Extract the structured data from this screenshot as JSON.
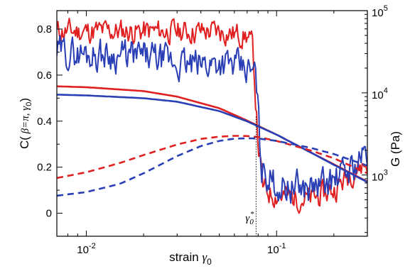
{
  "chart_data": {
    "type": "line",
    "xscale": "log",
    "xlim": [
      0.007,
      0.3
    ],
    "xticks": [
      0.01,
      0.1
    ],
    "xtick_labels": [
      {
        "base": "10",
        "exp": "-2"
      },
      {
        "base": "10",
        "exp": "-1"
      }
    ],
    "xlabel": {
      "text": "strain ",
      "symbol": "γ",
      "sub": "0"
    },
    "left_axis": {
      "label": {
        "pre": "C(",
        "mid": " β=π, γ",
        "sub": "0",
        "post": ")"
      },
      "lim": [
        -0.1,
        0.88
      ],
      "ticks": [
        0,
        0.2,
        0.4,
        0.6,
        0.8
      ],
      "tick_labels": [
        "0",
        "0.2",
        "0.4",
        "0.6",
        "0.8"
      ]
    },
    "right_axis": {
      "label": "G (Pa)",
      "scale": "log",
      "lim": [
        180,
        100000
      ],
      "ticks": [
        1000,
        10000,
        100000
      ],
      "tick_labels": [
        {
          "base": "10",
          "exp": "3"
        },
        {
          "base": "10",
          "exp": "4"
        },
        {
          "base": "10",
          "exp": "5"
        }
      ]
    },
    "annotation": {
      "symbol": "γ",
      "sub": "0",
      "sup": "*",
      "x": 0.078
    },
    "grid": false,
    "series": [
      {
        "axis": "left",
        "color": "#e02020",
        "style": "noisy-solid",
        "noise": 0.045,
        "seed": 11,
        "x": [
          0.007,
          0.02,
          0.05,
          0.07,
          0.075,
          0.08,
          0.085,
          0.1,
          0.15,
          0.2,
          0.25,
          0.3
        ],
        "y": [
          0.79,
          0.79,
          0.79,
          0.77,
          0.72,
          0.3,
          0.1,
          0.08,
          0.06,
          0.1,
          0.18,
          0.22
        ]
      },
      {
        "axis": "left",
        "color": "#2a3fb5",
        "style": "noisy-solid",
        "noise": 0.06,
        "seed": 29,
        "x": [
          0.007,
          0.02,
          0.035,
          0.05,
          0.07,
          0.078,
          0.083,
          0.1,
          0.15,
          0.2,
          0.25,
          0.3
        ],
        "y": [
          0.7,
          0.68,
          0.64,
          0.66,
          0.62,
          0.6,
          0.2,
          0.12,
          0.11,
          0.14,
          0.2,
          0.26
        ]
      },
      {
        "axis": "right",
        "color": "#e02020",
        "style": "solid",
        "x": [
          0.007,
          0.01,
          0.02,
          0.03,
          0.05,
          0.07,
          0.1,
          0.15,
          0.2,
          0.3
        ],
        "y": [
          12000,
          11700,
          10500,
          9000,
          6500,
          4600,
          3100,
          1900,
          1350,
          830
        ]
      },
      {
        "axis": "right",
        "color": "#2a3fb5",
        "style": "solid",
        "x": [
          0.007,
          0.01,
          0.02,
          0.03,
          0.05,
          0.07,
          0.1,
          0.15,
          0.2,
          0.3
        ],
        "y": [
          9500,
          9300,
          8600,
          7800,
          6000,
          4500,
          3100,
          1900,
          1330,
          820
        ]
      },
      {
        "axis": "right",
        "color": "#e02020",
        "style": "dashed",
        "x": [
          0.007,
          0.01,
          0.015,
          0.02,
          0.03,
          0.04,
          0.05,
          0.06,
          0.07,
          0.08,
          0.1,
          0.15,
          0.2,
          0.3
        ],
        "y": [
          920,
          1080,
          1400,
          1750,
          2350,
          2750,
          2930,
          3000,
          2980,
          2900,
          2600,
          2000,
          1600,
          1050
        ]
      },
      {
        "axis": "right",
        "color": "#2a3fb5",
        "style": "dashed",
        "x": [
          0.007,
          0.01,
          0.015,
          0.02,
          0.03,
          0.04,
          0.05,
          0.06,
          0.07,
          0.08,
          0.1,
          0.15,
          0.2,
          0.3
        ],
        "y": [
          560,
          620,
          780,
          1050,
          1700,
          2250,
          2600,
          2770,
          2800,
          2780,
          2600,
          2150,
          1800,
          1300
        ]
      }
    ]
  }
}
